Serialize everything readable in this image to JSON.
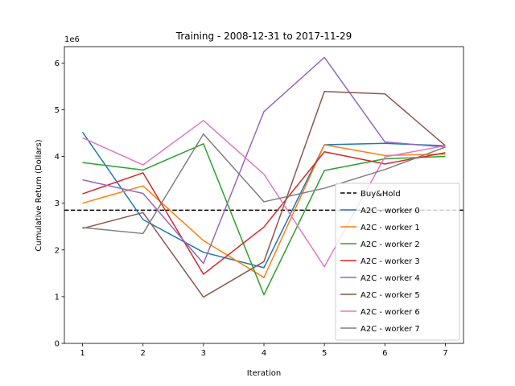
{
  "chart_data": {
    "type": "line",
    "title": "Training - 2008-12-31 to 2017-11-29",
    "xlabel": "Iteration",
    "ylabel": "Cumulative Return (Dollars)",
    "y_multiplier_label": "1e6",
    "x": [
      1,
      2,
      3,
      4,
      5,
      6,
      7
    ],
    "xlim": [
      0.7,
      7.3
    ],
    "ylim": [
      0,
      6350000
    ],
    "xticks": [
      1,
      2,
      3,
      4,
      5,
      6,
      7
    ],
    "yticks": [
      0,
      1000000,
      2000000,
      3000000,
      4000000,
      5000000,
      6000000
    ],
    "ytick_labels": [
      "0",
      "1",
      "2",
      "3",
      "4",
      "5",
      "6"
    ],
    "grid": false,
    "legend_position": "lower-right",
    "reference_line": {
      "name": "Buy&Hold",
      "value": 2850000,
      "color": "#000000",
      "style": "dashed"
    },
    "series": [
      {
        "name": "A2C - worker 0",
        "color": "#1f77b4",
        "values": [
          4520000,
          2650000,
          1950000,
          1620000,
          4250000,
          4280000,
          4230000
        ]
      },
      {
        "name": "A2C - worker 1",
        "color": "#ff7f0e",
        "values": [
          3000000,
          3370000,
          2200000,
          1410000,
          4250000,
          4020000,
          4050000
        ]
      },
      {
        "name": "A2C - worker 2",
        "color": "#2ca02c",
        "values": [
          3870000,
          3710000,
          4270000,
          1040000,
          3700000,
          3950000,
          4000000
        ]
      },
      {
        "name": "A2C - worker 3",
        "color": "#d62728",
        "values": [
          3200000,
          3650000,
          1480000,
          2490000,
          4100000,
          3840000,
          4080000
        ]
      },
      {
        "name": "A2C - worker 4",
        "color": "#9467bd",
        "values": [
          3500000,
          3210000,
          1710000,
          4960000,
          6120000,
          4310000,
          4200000
        ]
      },
      {
        "name": "A2C - worker 5",
        "color": "#8c564b",
        "values": [
          2460000,
          2800000,
          990000,
          1750000,
          5390000,
          5340000,
          4230000
        ]
      },
      {
        "name": "A2C - worker 6",
        "color": "#e377c2",
        "values": [
          4400000,
          3820000,
          4770000,
          3620000,
          1640000,
          3990000,
          4230000
        ]
      },
      {
        "name": "A2C - worker 7",
        "color": "#7f7f7f",
        "values": [
          2480000,
          2350000,
          4480000,
          3030000,
          3320000,
          3720000,
          4200000
        ]
      }
    ]
  }
}
